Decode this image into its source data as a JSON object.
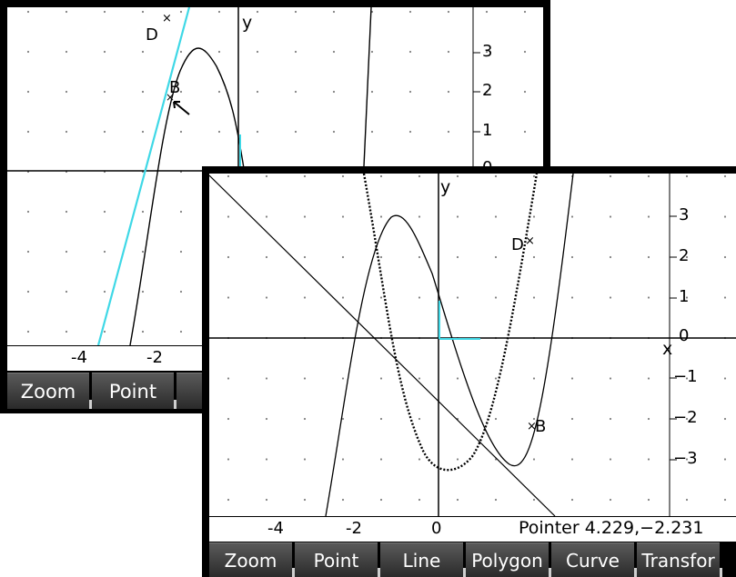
{
  "back_window": {
    "y_ticks": [
      "3",
      "2",
      "1",
      "0"
    ],
    "x_ticks": [
      "-4",
      "-2"
    ],
    "axis_y": "y",
    "point_labels": {
      "d": "D",
      "b": "B"
    },
    "menu": [
      "Zoom",
      "Point",
      ""
    ],
    "colors": {
      "tangent": "#3fd8e6",
      "axes": "#000000",
      "grid_dot": "#808080"
    }
  },
  "front_window": {
    "y_ticks": [
      "3",
      "2",
      "1",
      "0",
      "−1",
      "−2",
      "−3"
    ],
    "x_ticks": [
      "-4",
      "-2",
      "0"
    ],
    "axis_x": "x",
    "axis_y": "y",
    "point_labels": {
      "d": "D",
      "b": "B"
    },
    "pointer": "Pointer 4.229,−2.231",
    "menu": [
      "Zoom",
      "Point",
      "Line",
      "Polygon",
      "Curve",
      "Transfor"
    ],
    "colors": {
      "highlight": "#3fd8e6",
      "axes": "#000000",
      "marker": "#000000"
    }
  }
}
